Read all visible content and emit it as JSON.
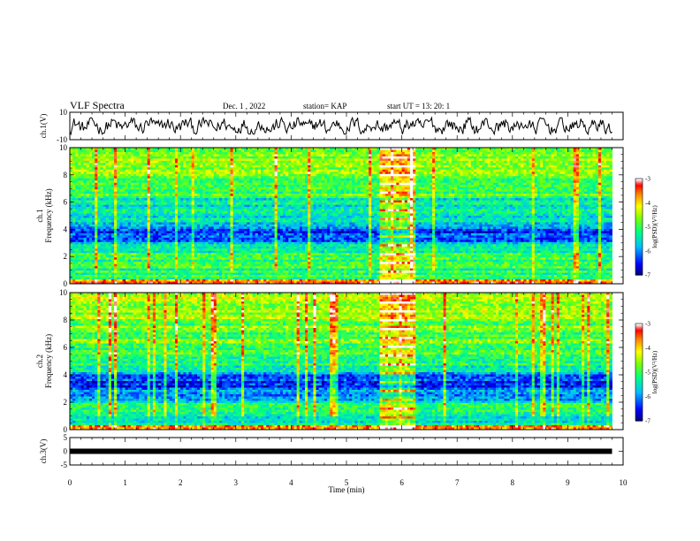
{
  "header": {
    "title": "VLF Spectra",
    "date": "Dec. 1 , 2022",
    "station": "station= KAP",
    "start": "start  UT  =   13: 20: 1"
  },
  "chart_data": [
    {
      "type": "line",
      "panel": "waveform-ch1",
      "ylabel": "ch.1(V)",
      "xlim": [
        0,
        10
      ],
      "ylim": [
        -10,
        10
      ],
      "ytick_labels": [
        "-10",
        "10"
      ],
      "x_end": 9.8,
      "approx_range": [
        -6,
        6
      ],
      "color": "#000000"
    },
    {
      "type": "heatmap",
      "panel": "spectrogram-ch1",
      "ylabel": "ch.1\nFrequency  (kHz)",
      "xlim": [
        0,
        10
      ],
      "ylim": [
        0,
        10
      ],
      "ytick_labels": [
        "0",
        "2",
        "4",
        "6",
        "8",
        "10"
      ],
      "x_end": 9.8,
      "burst_interval": [
        5.6,
        6.25
      ],
      "colorbar": {
        "label": "log(PSD)(V²/Hz)",
        "range": [
          -7,
          -3
        ],
        "tick_labels": [
          "-3",
          "-4",
          "-5",
          "-6",
          "-7"
        ],
        "colors": [
          "#000080",
          "#0000ff",
          "#00c8ff",
          "#00ff80",
          "#80ff00",
          "#ffff00",
          "#ff8000",
          "#ff0000",
          "#ffffff"
        ]
      },
      "band_levels": [
        {
          "from": 0.0,
          "to": 0.3,
          "level": -3.6
        },
        {
          "from": 0.3,
          "to": 1.2,
          "level": -5.2
        },
        {
          "from": 1.2,
          "to": 2.2,
          "level": -5.0
        },
        {
          "from": 2.2,
          "to": 3.0,
          "level": -5.5
        },
        {
          "from": 3.0,
          "to": 4.2,
          "level": -6.2
        },
        {
          "from": 4.2,
          "to": 5.0,
          "level": -5.6
        },
        {
          "from": 5.0,
          "to": 6.5,
          "level": -5.3
        },
        {
          "from": 6.5,
          "to": 8.0,
          "level": -4.9
        },
        {
          "from": 8.0,
          "to": 10.0,
          "level": -4.6
        }
      ]
    },
    {
      "type": "heatmap",
      "panel": "spectrogram-ch2",
      "ylabel": "ch.2\nFrequency  (kHz)",
      "xlim": [
        0,
        10
      ],
      "ylim": [
        0,
        10
      ],
      "ytick_labels": [
        "0",
        "2",
        "4",
        "6",
        "8",
        "10"
      ],
      "x_end": 9.8,
      "burst_interval": [
        5.6,
        6.25
      ],
      "colorbar": {
        "label": "log(PSD)(V²/Hz)",
        "range": [
          -7,
          -3
        ],
        "tick_labels": [
          "-3",
          "-4",
          "-5",
          "-6",
          "-7"
        ]
      },
      "band_levels": [
        {
          "from": 0.0,
          "to": 0.3,
          "level": -3.8
        },
        {
          "from": 0.3,
          "to": 2.0,
          "level": -5.3
        },
        {
          "from": 2.0,
          "to": 3.0,
          "level": -5.8
        },
        {
          "from": 3.0,
          "to": 4.0,
          "level": -6.3
        },
        {
          "from": 4.0,
          "to": 4.6,
          "level": -5.6
        },
        {
          "from": 4.6,
          "to": 6.0,
          "level": -5.0
        },
        {
          "from": 6.0,
          "to": 8.0,
          "level": -4.8
        },
        {
          "from": 8.0,
          "to": 10.0,
          "level": -4.4
        }
      ]
    },
    {
      "type": "line",
      "panel": "waveform-ch3",
      "ylabel": "ch.3(V)",
      "xlabel": "Time  (min)",
      "xlim": [
        0,
        10
      ],
      "ylim": [
        -5,
        5
      ],
      "ytick_labels": [
        "-5",
        "0",
        "5"
      ],
      "xtick_labels": [
        "0",
        "1",
        "2",
        "3",
        "4",
        "5",
        "6",
        "7",
        "8",
        "9",
        "10"
      ],
      "x_end": 9.8,
      "value": 0,
      "thickness_note": "flat thick trace near 0 V",
      "color": "#000000"
    }
  ]
}
